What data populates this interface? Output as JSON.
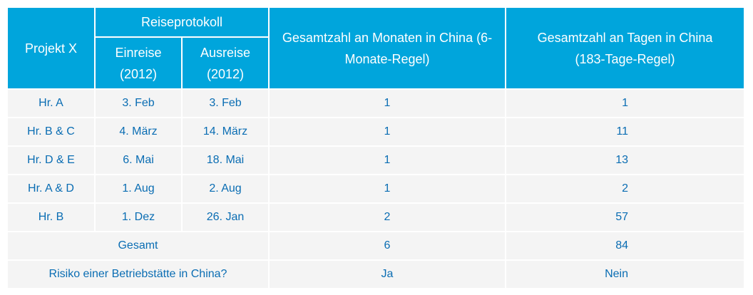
{
  "header": {
    "project": "Projekt X",
    "travel_log": "Reiseprotokoll",
    "entry": "Einreise (2012)",
    "exit": "Ausreise (2012)",
    "months": "Gesamtzahl an Monaten in China (6-Monate-Regel)",
    "days": "Gesamtzahl an Tagen in China (183-Tage-Regel)"
  },
  "rows": [
    {
      "person": "Hr. A",
      "entry": "3. Feb",
      "exit": "3. Feb",
      "months": "1",
      "days": "1"
    },
    {
      "person": "Hr. B & C",
      "entry": "4. März",
      "exit": "14. März",
      "months": "1",
      "days": "11"
    },
    {
      "person": "Hr. D & E",
      "entry": "6. Mai",
      "exit": "18. Mai",
      "months": "1",
      "days": "13"
    },
    {
      "person": "Hr. A & D",
      "entry": "1. Aug",
      "exit": "2. Aug",
      "months": "1",
      "days": "2"
    },
    {
      "person": "Hr. B",
      "entry": "1. Dez",
      "exit": "26. Jan",
      "months": "2",
      "days": "57"
    }
  ],
  "total": {
    "label": "Gesamt",
    "months": "6",
    "days": "84"
  },
  "risk": {
    "label": "Risiko einer Betriebstätte in China?",
    "months": "Ja",
    "days": "Nein"
  },
  "colors": {
    "header": "#00a5dc",
    "body": "#f4f4f4",
    "text": "#0a6db3"
  }
}
